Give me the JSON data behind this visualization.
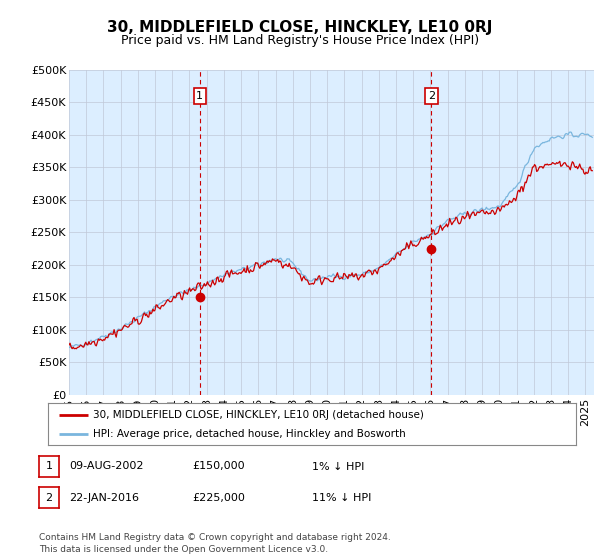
{
  "title": "30, MIDDLEFIELD CLOSE, HINCKLEY, LE10 0RJ",
  "subtitle": "Price paid vs. HM Land Registry's House Price Index (HPI)",
  "ylim": [
    0,
    500000
  ],
  "ytick_values": [
    0,
    50000,
    100000,
    150000,
    200000,
    250000,
    300000,
    350000,
    400000,
    450000,
    500000
  ],
  "xlim_start": 1995.0,
  "xlim_end": 2025.5,
  "sale1_date": 2002.6,
  "sale1_price": 150000,
  "sale1_label": "1",
  "sale2_date": 2016.05,
  "sale2_price": 225000,
  "sale2_label": "2",
  "hpi_color": "#7ab6de",
  "price_color": "#cc0000",
  "vline_color": "#cc0000",
  "chart_bg": "#dceeff",
  "legend_line1": "30, MIDDLEFIELD CLOSE, HINCKLEY, LE10 0RJ (detached house)",
  "legend_line2": "HPI: Average price, detached house, Hinckley and Bosworth",
  "table_row1": [
    "1",
    "09-AUG-2002",
    "£150,000",
    "1% ↓ HPI"
  ],
  "table_row2": [
    "2",
    "22-JAN-2016",
    "£225,000",
    "11% ↓ HPI"
  ],
  "footnote": "Contains HM Land Registry data © Crown copyright and database right 2024.\nThis data is licensed under the Open Government Licence v3.0.",
  "background_color": "#ffffff",
  "grid_color": "#c0c8d8",
  "title_fontsize": 11,
  "subtitle_fontsize": 9,
  "tick_fontsize": 8
}
